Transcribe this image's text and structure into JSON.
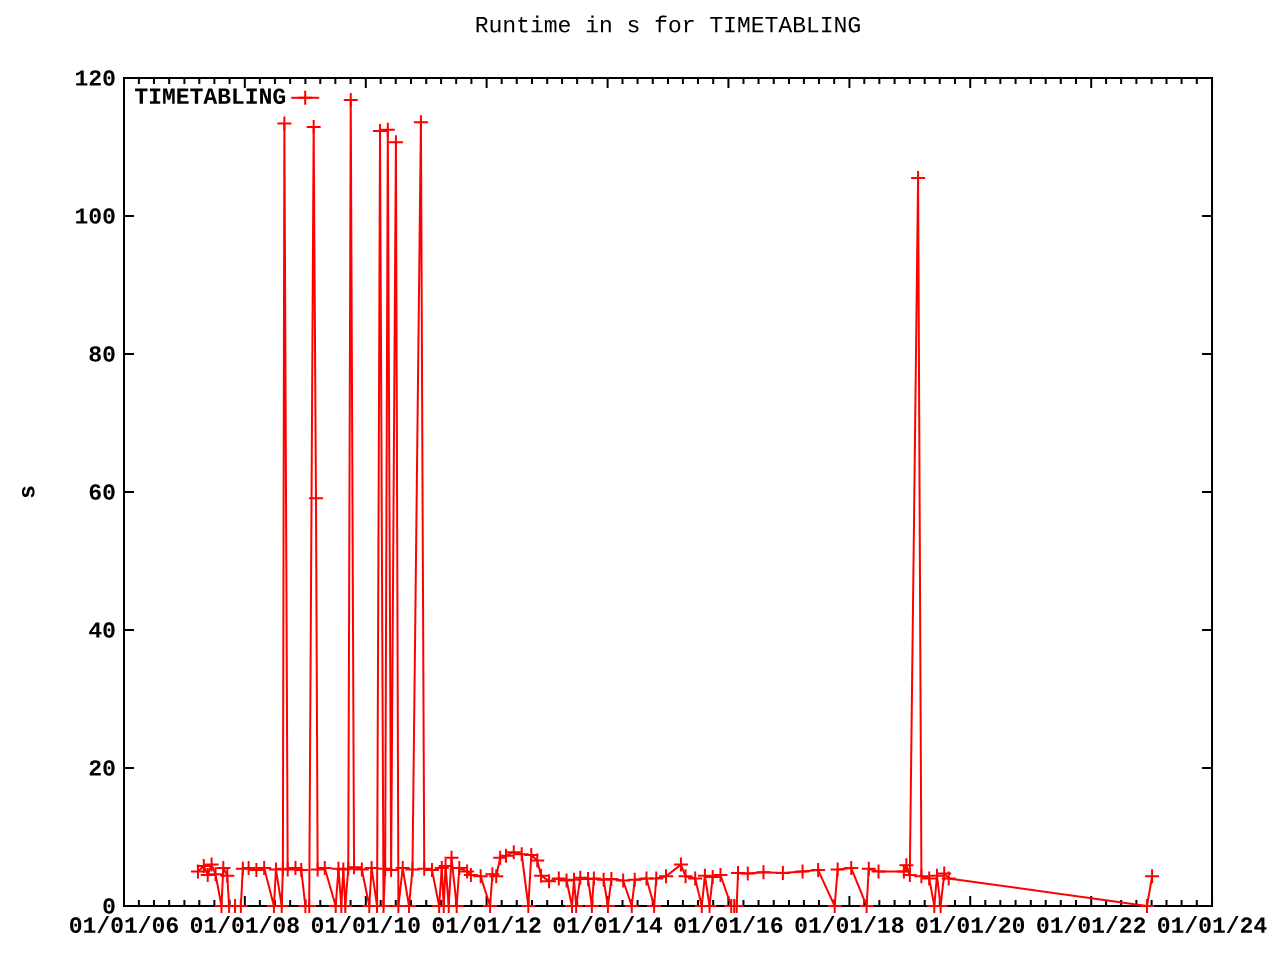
{
  "chart_data": {
    "type": "line",
    "title": "Runtime in s for TIMETABLING",
    "ylabel": "s",
    "xlim": [
      "2006-01-01",
      "2024-01-01"
    ],
    "ylim": [
      0,
      120
    ],
    "xticks": [
      {
        "value": "2006-01-01",
        "label": "01/01/06"
      },
      {
        "value": "2006-04-01",
        "label": null
      },
      {
        "value": "2006-07-01",
        "label": null
      },
      {
        "value": "2006-10-01",
        "label": null
      },
      {
        "value": "2007-01-01",
        "label": null
      },
      {
        "value": "2007-04-01",
        "label": null
      },
      {
        "value": "2007-07-01",
        "label": null
      },
      {
        "value": "2007-10-01",
        "label": null
      },
      {
        "value": "2008-01-01",
        "label": "01/01/08"
      },
      {
        "value": "2008-04-01",
        "label": null
      },
      {
        "value": "2008-07-01",
        "label": null
      },
      {
        "value": "2008-10-01",
        "label": null
      },
      {
        "value": "2009-01-01",
        "label": null
      },
      {
        "value": "2009-04-01",
        "label": null
      },
      {
        "value": "2009-07-01",
        "label": null
      },
      {
        "value": "2009-10-01",
        "label": null
      },
      {
        "value": "2010-01-01",
        "label": "01/01/10"
      },
      {
        "value": "2010-04-01",
        "label": null
      },
      {
        "value": "2010-07-01",
        "label": null
      },
      {
        "value": "2010-10-01",
        "label": null
      },
      {
        "value": "2011-01-01",
        "label": null
      },
      {
        "value": "2011-04-01",
        "label": null
      },
      {
        "value": "2011-07-01",
        "label": null
      },
      {
        "value": "2011-10-01",
        "label": null
      },
      {
        "value": "2012-01-01",
        "label": "01/01/12"
      },
      {
        "value": "2012-04-01",
        "label": null
      },
      {
        "value": "2012-07-01",
        "label": null
      },
      {
        "value": "2012-10-01",
        "label": null
      },
      {
        "value": "2013-01-01",
        "label": null
      },
      {
        "value": "2013-04-01",
        "label": null
      },
      {
        "value": "2013-07-01",
        "label": null
      },
      {
        "value": "2013-10-01",
        "label": null
      },
      {
        "value": "2014-01-01",
        "label": "01/01/14"
      },
      {
        "value": "2014-04-01",
        "label": null
      },
      {
        "value": "2014-07-01",
        "label": null
      },
      {
        "value": "2014-10-01",
        "label": null
      },
      {
        "value": "2015-01-01",
        "label": null
      },
      {
        "value": "2015-04-01",
        "label": null
      },
      {
        "value": "2015-07-01",
        "label": null
      },
      {
        "value": "2015-10-01",
        "label": null
      },
      {
        "value": "2016-01-01",
        "label": "01/01/16"
      },
      {
        "value": "2016-04-01",
        "label": null
      },
      {
        "value": "2016-07-01",
        "label": null
      },
      {
        "value": "2016-10-01",
        "label": null
      },
      {
        "value": "2017-01-01",
        "label": null
      },
      {
        "value": "2017-04-01",
        "label": null
      },
      {
        "value": "2017-07-01",
        "label": null
      },
      {
        "value": "2017-10-01",
        "label": null
      },
      {
        "value": "2018-01-01",
        "label": "01/01/18"
      },
      {
        "value": "2018-04-01",
        "label": null
      },
      {
        "value": "2018-07-01",
        "label": null
      },
      {
        "value": "2018-10-01",
        "label": null
      },
      {
        "value": "2019-01-01",
        "label": null
      },
      {
        "value": "2019-04-01",
        "label": null
      },
      {
        "value": "2019-07-01",
        "label": null
      },
      {
        "value": "2019-10-01",
        "label": null
      },
      {
        "value": "2020-01-01",
        "label": "01/01/20"
      },
      {
        "value": "2020-04-01",
        "label": null
      },
      {
        "value": "2020-07-01",
        "label": null
      },
      {
        "value": "2020-10-01",
        "label": null
      },
      {
        "value": "2021-01-01",
        "label": null
      },
      {
        "value": "2021-04-01",
        "label": null
      },
      {
        "value": "2021-07-01",
        "label": null
      },
      {
        "value": "2021-10-01",
        "label": null
      },
      {
        "value": "2022-01-01",
        "label": "01/01/22"
      },
      {
        "value": "2022-04-01",
        "label": null
      },
      {
        "value": "2022-07-01",
        "label": null
      },
      {
        "value": "2022-10-01",
        "label": null
      },
      {
        "value": "2023-01-01",
        "label": null
      },
      {
        "value": "2023-04-01",
        "label": null
      },
      {
        "value": "2023-07-01",
        "label": null
      },
      {
        "value": "2023-10-01",
        "label": null
      },
      {
        "value": "2024-01-01",
        "label": "01/01/24"
      }
    ],
    "yticks": [
      0,
      20,
      40,
      60,
      80,
      100,
      120
    ],
    "legend": "top left",
    "marker": "cross",
    "line_style": "solid",
    "series": [
      {
        "name": "TIMETABLING",
        "color": "#ff0000",
        "x": [
          "2007-03-24",
          "2007-04-28",
          "2007-05-22",
          "2007-06-14",
          "2007-07-08",
          "2007-08-13",
          "2007-08-24",
          "2007-09-17",
          "2007-09-28",
          "2007-11-03",
          "2007-12-08",
          "2007-12-20",
          "2008-01-24",
          "2008-03-11",
          "2008-04-27",
          "2008-06-25",
          "2008-07-07",
          "2008-08-11",
          "2008-08-18",
          "2008-08-27",
          "2008-09-16",
          "2008-11-02",
          "2008-12-07",
          "2009-01-01",
          "2009-01-24",
          "2009-02-20",
          "2009-03-06",
          "2009-03-16",
          "2009-04-28",
          "2009-07-03",
          "2009-07-20",
          "2009-08-06",
          "2009-08-18",
          "2009-08-30",
          "2009-09-17",
          "2009-10-02",
          "2009-10-22",
          "2009-12-08",
          "2010-01-22",
          "2010-02-05",
          "2010-03-10",
          "2010-03-28",
          "2010-04-18",
          "2010-04-28",
          "2010-05-14",
          "2010-06-03",
          "2010-07-02",
          "2010-07-17",
          "2010-08-12",
          "2010-09-19",
          "2010-10-10",
          "2010-11-30",
          "2010-12-20",
          "2011-02-05",
          "2011-03-20",
          "2011-04-05",
          "2011-04-17",
          "2011-04-28",
          "2011-05-17",
          "2011-06-03",
          "2011-07-04",
          "2011-07-20",
          "2011-09-05",
          "2011-09-28",
          "2011-11-26",
          "2012-01-22",
          "2012-02-05",
          "2012-02-28",
          "2012-03-23",
          "2012-04-27",
          "2012-06-13",
          "2012-07-31",
          "2012-09-09",
          "2012-09-27",
          "2012-11-02",
          "2012-11-25",
          "2013-01-12",
          "2013-03-12",
          "2013-04-28",
          "2013-05-31",
          "2013-06-12",
          "2013-06-25",
          "2013-07-20",
          "2013-09-05",
          "2013-09-28",
          "2013-10-10",
          "2013-12-08",
          "2014-01-03",
          "2014-01-24",
          "2014-04-05",
          "2014-05-27",
          "2014-06-14",
          "2014-08-24",
          "2014-10-09",
          "2014-10-22",
          "2014-12-20",
          "2015-03-20",
          "2015-04-17",
          "2015-06-14",
          "2015-07-24",
          "2015-08-12",
          "2015-09-09",
          "2015-09-28",
          "2015-11-14",
          "2016-01-18",
          "2016-02-05",
          "2016-02-20",
          "2016-02-28",
          "2016-04-27",
          "2016-07-31",
          "2016-11-25",
          "2017-03-24",
          "2017-06-26",
          "2017-10-04",
          "2017-10-22",
          "2018-01-12",
          "2018-04-15",
          "2018-04-28",
          "2018-06-26",
          "2018-11-26",
          "2018-12-11",
          "2019-01-01",
          "2019-02-20",
          "2019-03-12",
          "2019-04-28",
          "2019-05-29",
          "2019-06-14",
          "2019-07-06",
          "2019-07-28",
          "2019-08-24",
          "2022-12-04",
          "2023-01-04"
        ],
        "values": [
          5.0,
          5.8,
          4.5,
          6.0,
          4.6,
          0,
          5.5,
          4.4,
          0,
          0,
          0,
          5.4,
          5.5,
          5.2,
          5.5,
          0,
          5.3,
          0,
          5.4,
          113.4,
          5.3,
          5.5,
          5.2,
          0,
          0,
          112.9,
          59.1,
          5.3,
          5.5,
          0,
          5.4,
          0,
          5.3,
          0,
          5.4,
          116.8,
          5.6,
          5.3,
          0,
          5.5,
          0,
          112.3,
          0,
          5.4,
          112.5,
          5.2,
          110.7,
          0,
          5.5,
          0,
          5.3,
          113.6,
          5.4,
          5.2,
          0,
          5.5,
          0,
          5.8,
          0,
          7.0,
          0,
          5.5,
          5.0,
          4.5,
          4.3,
          0,
          4.6,
          4.3,
          7.0,
          7.3,
          7.8,
          7.5,
          0,
          7.4,
          6.6,
          4.4,
          3.6,
          4.0,
          3.7,
          0,
          3.8,
          0,
          4.1,
          3.9,
          0,
          4.0,
          3.8,
          0,
          3.9,
          3.7,
          0,
          3.8,
          4.0,
          0,
          4.0,
          4.3,
          6.0,
          4.3,
          4.0,
          0,
          4.4,
          0,
          4.2,
          4.5,
          0,
          0,
          0,
          4.8,
          4.7,
          4.9,
          4.8,
          5.0,
          5.2,
          0,
          5.3,
          5.5,
          0,
          5.4,
          5.0,
          5.0,
          5.9,
          4.5,
          105.5,
          4.3,
          4.0,
          0,
          4.4,
          0,
          4.7,
          4.0,
          0,
          4.3
        ]
      }
    ]
  }
}
